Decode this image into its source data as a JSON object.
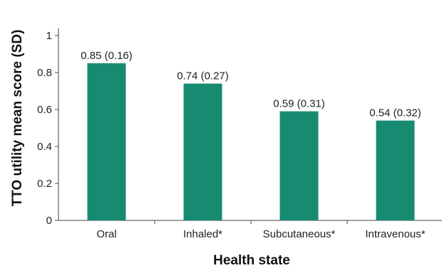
{
  "chart_data": {
    "type": "bar",
    "categories": [
      "Oral",
      "Inhaled*",
      "Subcutaneous*",
      "Intravenous*"
    ],
    "values": [
      0.85,
      0.74,
      0.59,
      0.54
    ],
    "data_labels": [
      "0.85 (0.16)",
      "0.74 (0.27)",
      "0.59 (0.31)",
      "0.54 (0.32)"
    ],
    "title": "",
    "xlabel": "Health state",
    "ylabel": "TTO utility mean score (SD)",
    "ylim": [
      0,
      1
    ],
    "yticks": [
      0,
      0.2,
      0.4,
      0.6,
      0.8,
      1
    ],
    "ytick_labels": [
      "0",
      "0.2",
      "0.4",
      "0.6",
      "0.8",
      "1"
    ],
    "bar_color": "#178a72",
    "grid": false
  }
}
